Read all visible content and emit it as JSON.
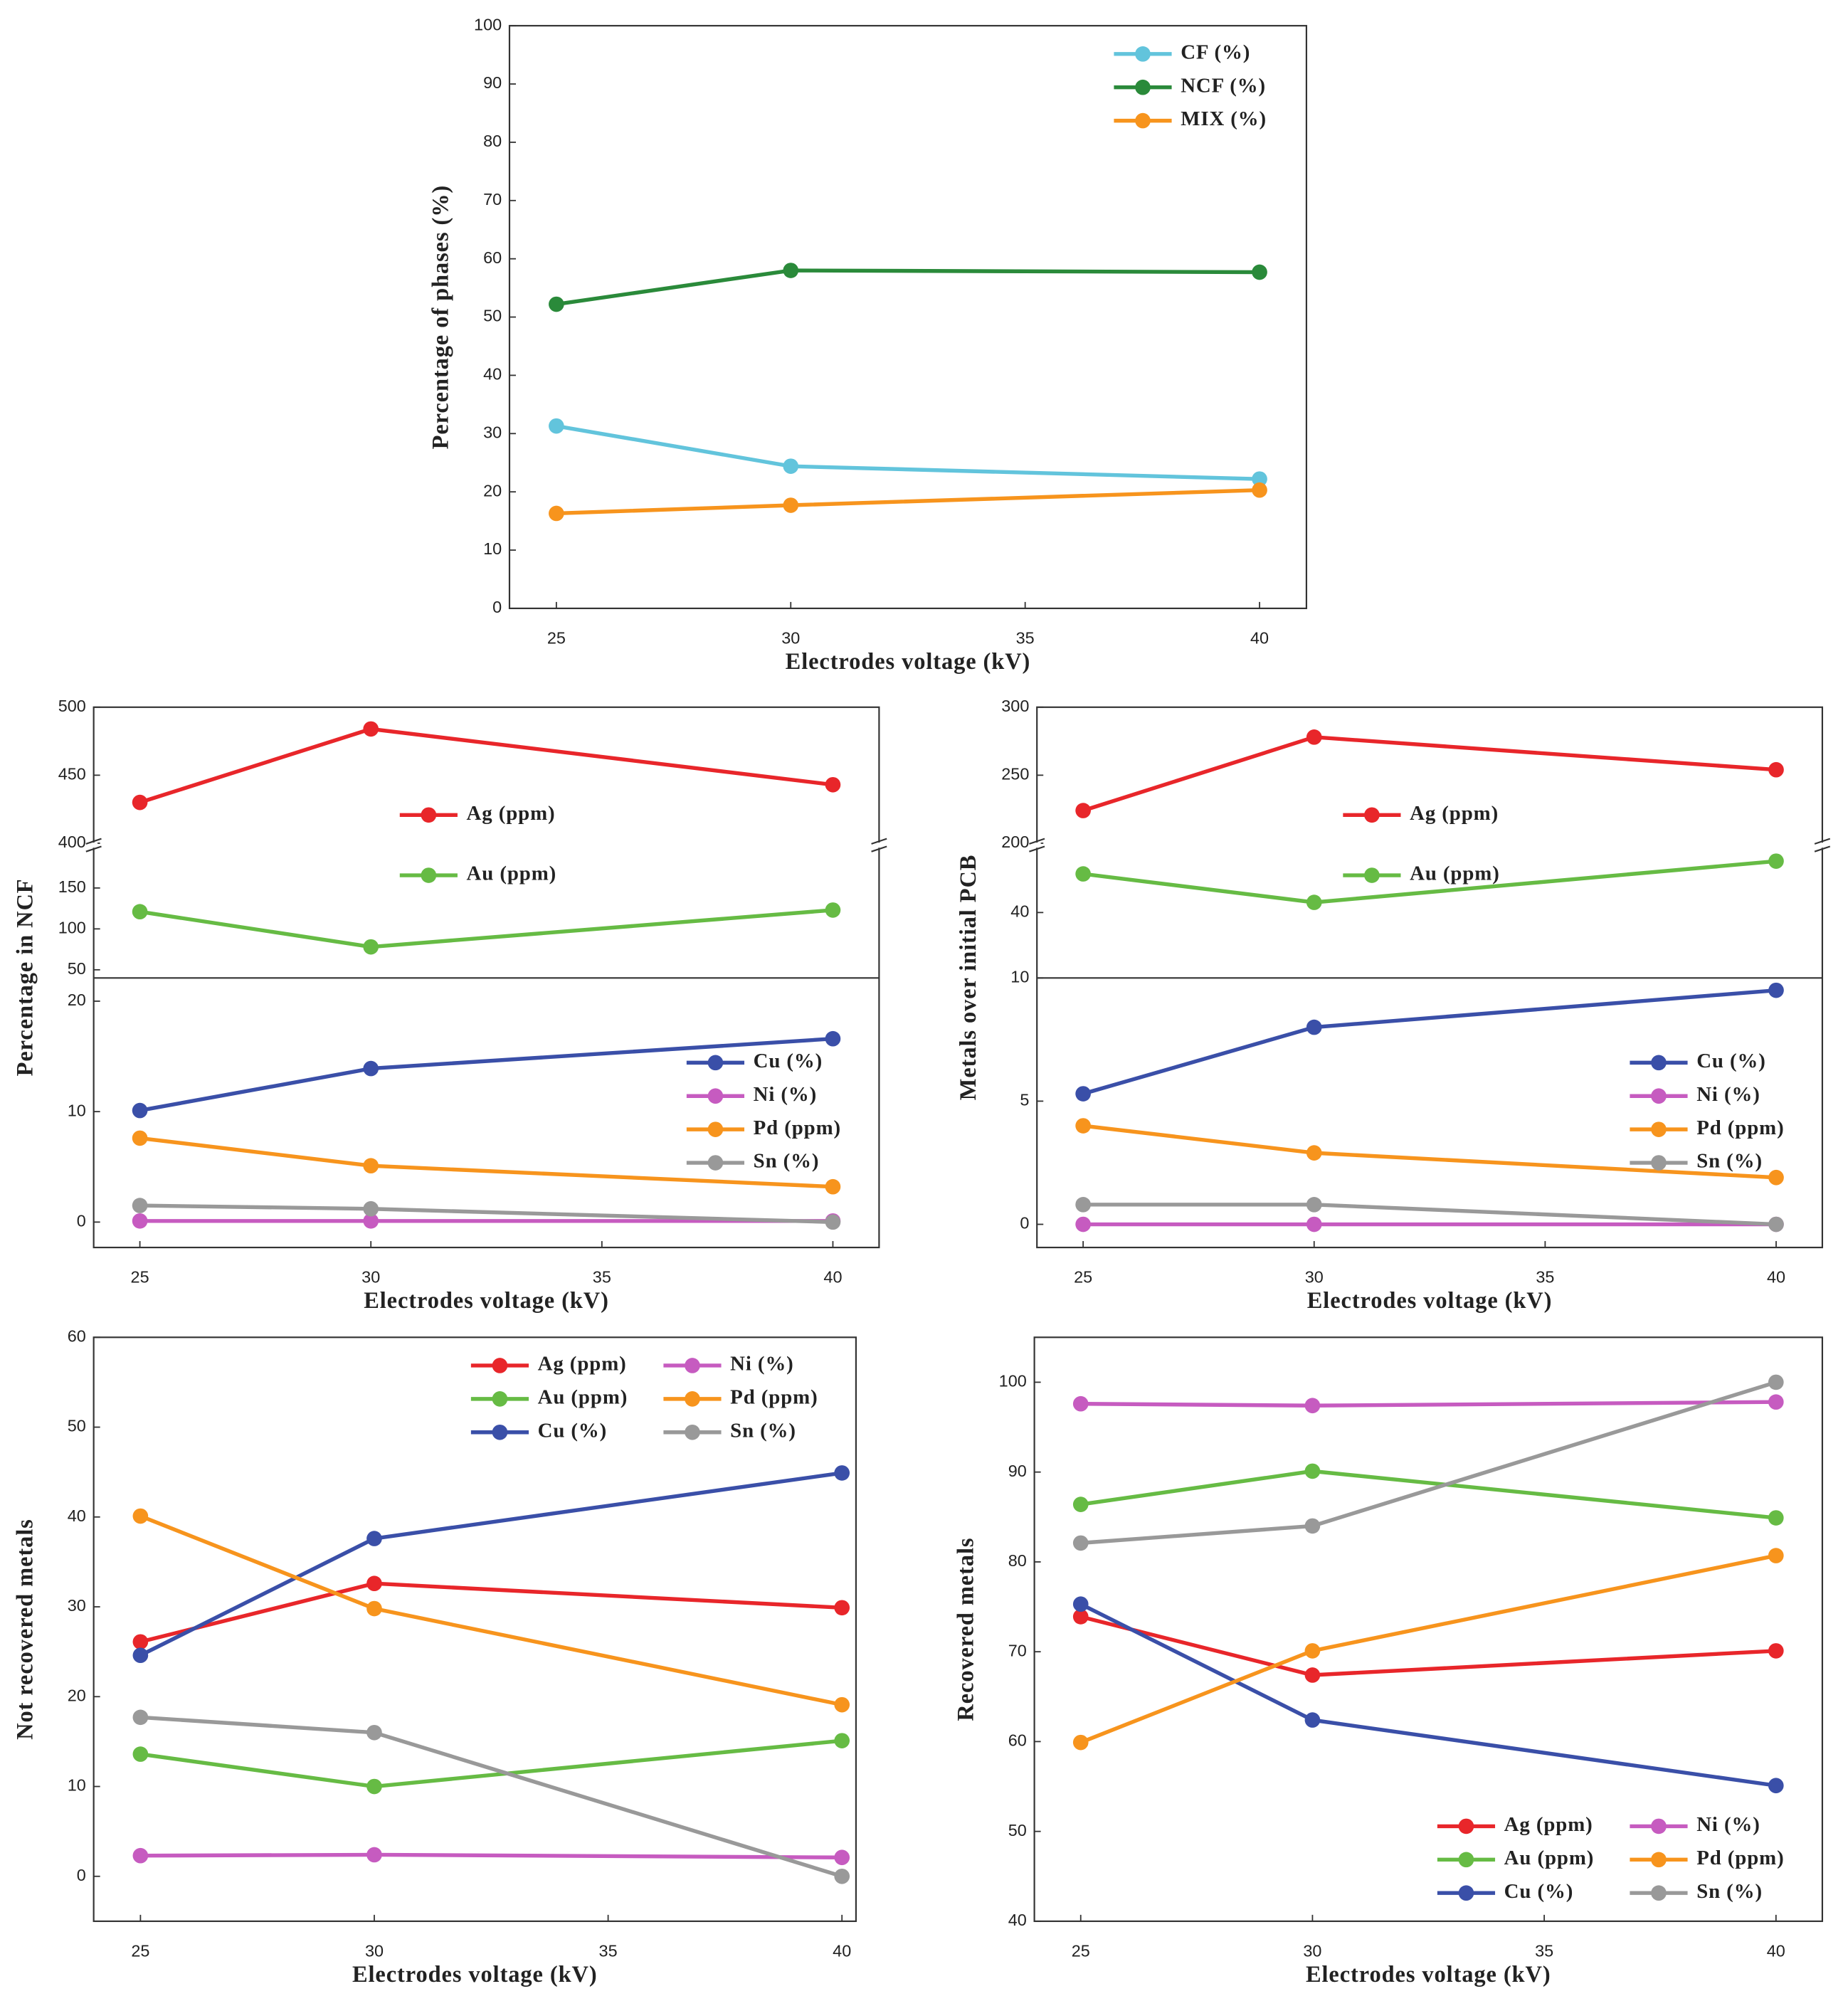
{
  "chart_data": [
    {
      "type": "line",
      "xlabel": "Electrodes voltage (kV)",
      "ylabel": "Percentage of phases (%)",
      "x": [
        25,
        30,
        40
      ],
      "xlim": [
        24,
        41
      ],
      "xticks": [
        25,
        30,
        35,
        40
      ],
      "ylim": [
        0,
        100
      ],
      "yticks": [
        0,
        10,
        20,
        30,
        40,
        50,
        60,
        70,
        80,
        90,
        100
      ],
      "legend": "upper right",
      "series": [
        {
          "name": "CF (%)",
          "color": "#62c4dc",
          "values": [
            31.3,
            24.4,
            22.2
          ]
        },
        {
          "name": "NCF (%)",
          "color": "#2a8a3a",
          "values": [
            52.2,
            58,
            57.7
          ]
        },
        {
          "name": "MIX (%)",
          "color": "#f7941d",
          "values": [
            16.3,
            17.7,
            20.3
          ]
        }
      ]
    },
    {
      "type": "line",
      "xlabel": "Electrodes voltage (kV)",
      "ylabel": "Percentage in NCF",
      "x": [
        25,
        30,
        40
      ],
      "xlim": [
        24,
        41
      ],
      "xticks": [
        25,
        30,
        35,
        40
      ],
      "segments": [
        {
          "ylim": [
            400,
            500
          ],
          "yticks": [
            400,
            450,
            500
          ],
          "legend": "lower center",
          "series": [
            {
              "name": "Ag (ppm)",
              "color": "#e8262a",
              "values": [
                430,
                484,
                443
              ]
            }
          ]
        },
        {
          "ylim": [
            40,
            200
          ],
          "yticks": [
            50,
            100,
            150
          ],
          "legend": "upper center",
          "series": [
            {
              "name": "Au (ppm)",
              "color": "#66bb44",
              "values": [
                121,
                78,
                123
              ]
            }
          ]
        },
        {
          "ylim": [
            -2.3,
            22.1
          ],
          "yticks": [
            0,
            10,
            20
          ],
          "legend": "center right",
          "series": [
            {
              "name": "Cu (%)",
              "color": "#3a4fa8",
              "values": [
                10.1,
                13.9,
                16.6
              ]
            },
            {
              "name": "Ni (%)",
              "color": "#c65bc0",
              "values": [
                0.1,
                0.1,
                0.1
              ]
            },
            {
              "name": "Pd (ppm)",
              "color": "#f7941d",
              "values": [
                7.6,
                5.1,
                3.2
              ]
            },
            {
              "name": "Sn (%)",
              "color": "#999999",
              "values": [
                1.5,
                1.2,
                0
              ]
            }
          ]
        }
      ]
    },
    {
      "type": "line",
      "xlabel": "Electrodes voltage (kV)",
      "ylabel": "Metals over initial PCB",
      "x": [
        25,
        30,
        40
      ],
      "xlim": [
        24,
        41
      ],
      "xticks": [
        25,
        30,
        35,
        40
      ],
      "segments": [
        {
          "ylim": [
            200,
            300
          ],
          "yticks": [
            200,
            250,
            300
          ],
          "legend": "lower center",
          "series": [
            {
              "name": "Ag (ppm)",
              "color": "#e8262a",
              "values": [
                224,
                278,
                254
              ]
            }
          ]
        },
        {
          "ylim": [
            20,
            60
          ],
          "yticks": [
            40
          ],
          "legend": "upper center",
          "series": [
            {
              "name": "Au (ppm)",
              "color": "#66bb44",
              "values": [
                51.8,
                43.1,
                55.7
              ]
            }
          ]
        },
        {
          "ylim": [
            -0.94,
            10
          ],
          "yticks": [
            0,
            5,
            10
          ],
          "legend": "center right",
          "series": [
            {
              "name": "Cu (%)",
              "color": "#3a4fa8",
              "values": [
                5.3,
                8.0,
                9.5
              ]
            },
            {
              "name": "Ni (%)",
              "color": "#c65bc0",
              "values": [
                0,
                0,
                0
              ]
            },
            {
              "name": "Pd (ppm)",
              "color": "#f7941d",
              "values": [
                4.0,
                2.9,
                1.9
              ]
            },
            {
              "name": "Sn (%)",
              "color": "#999999",
              "values": [
                0.8,
                0.8,
                0
              ]
            }
          ]
        }
      ]
    },
    {
      "type": "line",
      "xlabel": "Electrodes voltage (kV)",
      "ylabel": "Not recovered metals",
      "x": [
        25,
        30,
        40
      ],
      "xlim": [
        24,
        40.3
      ],
      "xticks": [
        25,
        30,
        35,
        40
      ],
      "ylim": [
        -5,
        60
      ],
      "yticks": [
        0,
        10,
        20,
        30,
        40,
        50,
        60
      ],
      "legend": "upper right",
      "series": [
        {
          "name": "Ag (ppm)",
          "color": "#e8262a",
          "values": [
            26.1,
            32.6,
            29.9
          ]
        },
        {
          "name": "Au (ppm)",
          "color": "#66bb44",
          "values": [
            13.6,
            10,
            15.1
          ]
        },
        {
          "name": "Cu (%)",
          "color": "#3a4fa8",
          "values": [
            24.6,
            37.6,
            44.9
          ]
        },
        {
          "name": "Ni (%)",
          "color": "#c65bc0",
          "values": [
            2.3,
            2.4,
            2.1
          ]
        },
        {
          "name": "Pd (ppm)",
          "color": "#f7941d",
          "values": [
            40.1,
            29.8,
            19.1
          ]
        },
        {
          "name": "Sn (%)",
          "color": "#999999",
          "values": [
            17.7,
            16,
            0
          ]
        }
      ]
    },
    {
      "type": "line",
      "xlabel": "Electrodes voltage (kV)",
      "ylabel": "Recovered metals",
      "x": [
        25,
        30,
        40
      ],
      "xlim": [
        24,
        41
      ],
      "xticks": [
        25,
        30,
        35,
        40
      ],
      "ylim": [
        40,
        105
      ],
      "yticks": [
        40,
        50,
        60,
        70,
        80,
        90,
        100
      ],
      "legend": "lower right",
      "series": [
        {
          "name": "Ag (ppm)",
          "color": "#e8262a",
          "values": [
            73.9,
            67.4,
            70.1
          ]
        },
        {
          "name": "Au (ppm)",
          "color": "#66bb44",
          "values": [
            86.4,
            90.1,
            84.9
          ]
        },
        {
          "name": "Cu (%)",
          "color": "#3a4fa8",
          "values": [
            75.3,
            62.4,
            55.1
          ]
        },
        {
          "name": "Ni (%)",
          "color": "#c65bc0",
          "values": [
            97.6,
            97.4,
            97.8
          ]
        },
        {
          "name": "Pd (ppm)",
          "color": "#f7941d",
          "values": [
            59.9,
            70.1,
            80.7
          ]
        },
        {
          "name": "Sn (%)",
          "color": "#999999",
          "values": [
            82.1,
            84,
            100
          ]
        }
      ]
    }
  ]
}
